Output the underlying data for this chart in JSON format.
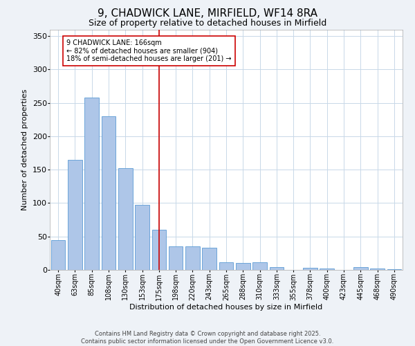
{
  "title": "9, CHADWICK LANE, MIRFIELD, WF14 8RA",
  "subtitle": "Size of property relative to detached houses in Mirfield",
  "xlabel": "Distribution of detached houses by size in Mirfield",
  "ylabel": "Number of detached properties",
  "categories": [
    "40sqm",
    "63sqm",
    "85sqm",
    "108sqm",
    "130sqm",
    "153sqm",
    "175sqm",
    "198sqm",
    "220sqm",
    "243sqm",
    "265sqm",
    "288sqm",
    "310sqm",
    "333sqm",
    "355sqm",
    "378sqm",
    "400sqm",
    "423sqm",
    "445sqm",
    "468sqm",
    "490sqm"
  ],
  "values": [
    45,
    165,
    258,
    230,
    152,
    97,
    60,
    35,
    35,
    33,
    11,
    10,
    11,
    4,
    0,
    3,
    2,
    0,
    4,
    2,
    1
  ],
  "bar_color": "#aec6e8",
  "bar_edge_color": "#5b9bd5",
  "bar_width": 0.85,
  "vline_color": "#cc0000",
  "annotation_text": "9 CHADWICK LANE: 166sqm\n← 82% of detached houses are smaller (904)\n18% of semi-detached houses are larger (201) →",
  "annotation_box_color": "#ffffff",
  "annotation_box_edge_color": "#cc0000",
  "ylim": [
    0,
    360
  ],
  "yticks": [
    0,
    50,
    100,
    150,
    200,
    250,
    300,
    350
  ],
  "footer": "Contains HM Land Registry data © Crown copyright and database right 2025.\nContains public sector information licensed under the Open Government Licence v3.0.",
  "bg_color": "#eef2f7",
  "plot_bg_color": "#ffffff",
  "grid_color": "#c8d8e8",
  "title_fontsize": 11,
  "subtitle_fontsize": 9,
  "xlabel_fontsize": 8,
  "ylabel_fontsize": 8,
  "tick_fontsize": 7,
  "footer_fontsize": 6,
  "annot_fontsize": 7
}
